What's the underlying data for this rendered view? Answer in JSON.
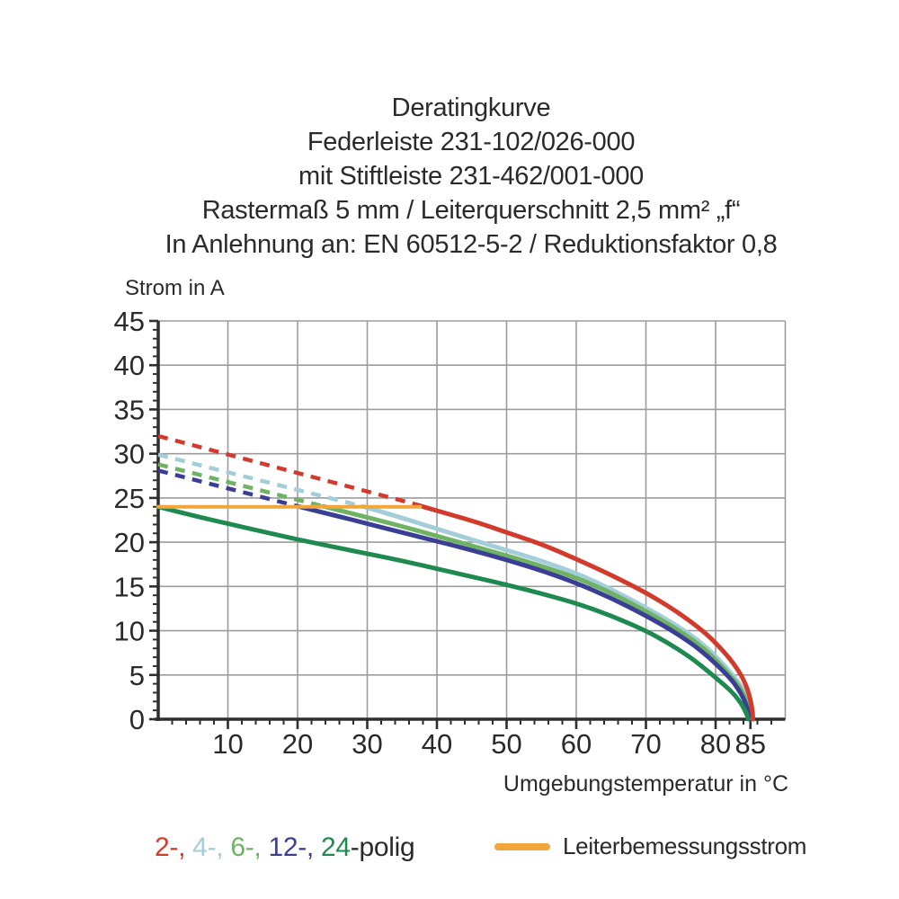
{
  "title": {
    "lines": [
      "Deratingkurve",
      "Federleiste 231-102/026-000",
      "mit Stiftleiste 231-462/001-000",
      "Rastermaß 5 mm / Leiterquerschnitt 2,5 mm² „f“",
      "In Anlehnung an: EN 60512-5-2 / Reduktionsfaktor 0,8"
    ]
  },
  "chart_data": {
    "type": "line",
    "title": "Deratingkurve",
    "xlabel": "Umgebungstemperatur in °C",
    "ylabel": "Strom in A",
    "xlim": [
      0,
      90
    ],
    "ylim": [
      0,
      45
    ],
    "x_ticks_labeled": [
      10,
      20,
      30,
      40,
      50,
      60,
      70,
      80,
      85
    ],
    "y_ticks_labeled": [
      0,
      5,
      10,
      15,
      20,
      25,
      30,
      35,
      40,
      45
    ],
    "x_minor_step": 2,
    "y_minor_step": 1,
    "grid": true,
    "grid_color": "#9c9c9c",
    "axis_color": "#2e2e2e",
    "rated_current_A": 24,
    "series": [
      {
        "name": "2-polig",
        "color": "#d23a2c",
        "dashed": [
          [
            0,
            32
          ],
          [
            37.6,
            24.15
          ]
        ],
        "solid": [
          [
            37.6,
            24.1
          ],
          [
            42,
            23.1
          ],
          [
            46,
            22.2
          ],
          [
            50,
            21.1
          ],
          [
            55,
            19.8
          ],
          [
            60,
            18.1
          ],
          [
            65,
            16.3
          ],
          [
            70,
            14.3
          ],
          [
            74,
            12.4
          ],
          [
            77,
            10.7
          ],
          [
            79,
            9.4
          ],
          [
            80.5,
            8.2
          ],
          [
            82,
            6.9
          ],
          [
            83.2,
            5.6
          ],
          [
            84.2,
            4.2
          ],
          [
            84.9,
            2.6
          ],
          [
            85.3,
            1.0
          ],
          [
            85.35,
            0
          ]
        ]
      },
      {
        "name": "4-polig",
        "color": "#a3ced9",
        "dashed": [
          [
            0,
            29.9
          ],
          [
            29.3,
            24.05
          ]
        ],
        "solid": [
          [
            29.3,
            24.05
          ],
          [
            34,
            23.0
          ],
          [
            40,
            21.5
          ],
          [
            45,
            20.3
          ],
          [
            50,
            19.1
          ],
          [
            55,
            17.9
          ],
          [
            60,
            16.5
          ],
          [
            65,
            14.7
          ],
          [
            70,
            12.6
          ],
          [
            74,
            10.8
          ],
          [
            77,
            9.2
          ],
          [
            79,
            7.9
          ],
          [
            80.5,
            6.7
          ],
          [
            82,
            5.4
          ],
          [
            83.2,
            4.3
          ],
          [
            84.2,
            3.0
          ],
          [
            84.8,
            1.8
          ],
          [
            85.1,
            0
          ]
        ]
      },
      {
        "name": "6-polig",
        "color": "#6fb263",
        "dashed": [
          [
            0,
            28.8
          ],
          [
            23.7,
            24.05
          ]
        ],
        "solid": [
          [
            23.7,
            24.05
          ],
          [
            28,
            23.2
          ],
          [
            34,
            22.0
          ],
          [
            40,
            20.7
          ],
          [
            45,
            19.6
          ],
          [
            50,
            18.5
          ],
          [
            55,
            17.3
          ],
          [
            60,
            16.0
          ],
          [
            65,
            14.3
          ],
          [
            70,
            12.2
          ],
          [
            74,
            10.4
          ],
          [
            77,
            8.8
          ],
          [
            79,
            7.5
          ],
          [
            80.5,
            6.3
          ],
          [
            82,
            5.0
          ],
          [
            83.2,
            3.9
          ],
          [
            84.1,
            2.7
          ],
          [
            84.7,
            1.4
          ],
          [
            85,
            0
          ]
        ]
      },
      {
        "name": "12-polig",
        "color": "#3b3e96",
        "dashed": [
          [
            0,
            28.1
          ],
          [
            20.3,
            24
          ]
        ],
        "solid": [
          [
            20.3,
            24
          ],
          [
            25,
            23.1
          ],
          [
            30,
            22.1
          ],
          [
            35,
            21.1
          ],
          [
            40,
            20.1
          ],
          [
            45,
            19.1
          ],
          [
            50,
            18.0
          ],
          [
            55,
            16.8
          ],
          [
            60,
            15.4
          ],
          [
            65,
            13.7
          ],
          [
            70,
            11.7
          ],
          [
            74,
            9.9
          ],
          [
            77,
            8.3
          ],
          [
            79,
            7.0
          ],
          [
            80.5,
            5.9
          ],
          [
            82,
            4.7
          ],
          [
            83.1,
            3.6
          ],
          [
            84,
            2.4
          ],
          [
            84.6,
            1.2
          ],
          [
            84.9,
            0
          ]
        ]
      },
      {
        "name": "24-polig",
        "color": "#1e8a4f",
        "dashed": [],
        "solid": [
          [
            0,
            24
          ],
          [
            5,
            23.0
          ],
          [
            10,
            22.1
          ],
          [
            15,
            21.2
          ],
          [
            20,
            20.3
          ],
          [
            25,
            19.5
          ],
          [
            30,
            18.7
          ],
          [
            35,
            17.9
          ],
          [
            40,
            17.0
          ],
          [
            45,
            16.1
          ],
          [
            50,
            15.2
          ],
          [
            55,
            14.2
          ],
          [
            60,
            13.1
          ],
          [
            65,
            11.7
          ],
          [
            70,
            10.0
          ],
          [
            73,
            8.7
          ],
          [
            76,
            7.2
          ],
          [
            78,
            6.0
          ],
          [
            80,
            4.7
          ],
          [
            81.5,
            3.7
          ],
          [
            82.8,
            2.7
          ],
          [
            83.8,
            1.6
          ],
          [
            84.4,
            0.7
          ],
          [
            84.7,
            0
          ]
        ]
      }
    ],
    "rated_line": {
      "name": "Leiterbemessungsstrom",
      "color": "#f0a63a",
      "points": [
        [
          0,
          24
        ],
        [
          37.6,
          24
        ]
      ]
    }
  },
  "legend": {
    "poles": [
      {
        "label": "2-,",
        "color": "#d23a2c",
        "sep": " "
      },
      {
        "label": "4-,",
        "color": "#a3ced9",
        "sep": " "
      },
      {
        "label": "6-,",
        "color": "#6fb263",
        "sep": " "
      },
      {
        "label": "12-,",
        "color": "#3b3e96",
        "sep": " "
      },
      {
        "label": "24",
        "color": "#1e8a4f",
        "sep": ""
      },
      {
        "label": "-polig",
        "color": "#2a2a2a",
        "sep": ""
      }
    ],
    "rated": {
      "label": "Leiterbemessungsstrom",
      "color": "#f0a63a"
    }
  }
}
